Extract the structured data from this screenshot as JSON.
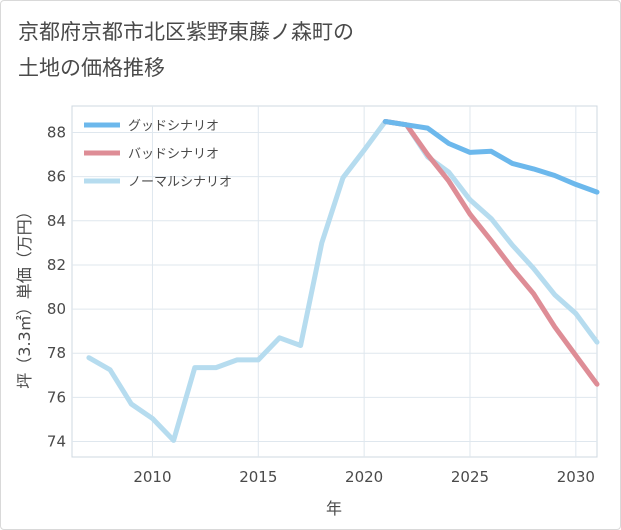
{
  "title": "京都府京都市北区紫野東藤ノ森町の\n土地の価格推移",
  "chart_data": {
    "type": "line",
    "xlabel": "年",
    "ylabel": "坪（3.3㎡）単価（万円）",
    "xlim": [
      2006.2,
      2031
    ],
    "ylim": [
      73.3,
      89.2
    ],
    "xticks": [
      2010,
      2015,
      2020,
      2025,
      2030
    ],
    "yticks": [
      74,
      76,
      78,
      80,
      82,
      84,
      86,
      88
    ],
    "grid": true,
    "legend_position": "top-left",
    "series": [
      {
        "name": "グッドシナリオ",
        "color": "#6cb8ec",
        "x": [
          2021,
          2022,
          2023,
          2024,
          2025,
          2026,
          2027,
          2028,
          2029,
          2030,
          2031
        ],
        "values": [
          88.5,
          88.35,
          88.2,
          87.5,
          87.1,
          87.15,
          86.6,
          86.35,
          86.05,
          85.65,
          85.3
        ]
      },
      {
        "name": "バッドシナリオ",
        "color": "#de8d96",
        "x": [
          2021,
          2022,
          2023,
          2024,
          2025,
          2026,
          2027,
          2028,
          2029,
          2030,
          2031
        ],
        "values": [
          88.5,
          88.35,
          87.0,
          85.8,
          84.3,
          83.1,
          81.85,
          80.7,
          79.2,
          77.9,
          76.6
        ]
      },
      {
        "name": "ノーマルシナリオ",
        "color": "#b6dcef",
        "x": [
          2007,
          2008,
          2009,
          2010,
          2011,
          2012,
          2013,
          2014,
          2015,
          2016,
          2017,
          2018,
          2019,
          2020,
          2021,
          2022,
          2023,
          2024,
          2025,
          2026,
          2027,
          2028,
          2029,
          2030,
          2031
        ],
        "values": [
          77.8,
          77.25,
          75.7,
          75.05,
          74.05,
          77.35,
          77.35,
          77.7,
          77.7,
          78.7,
          78.35,
          83.0,
          85.95,
          87.2,
          88.5,
          88.35,
          86.9,
          86.2,
          84.95,
          84.1,
          82.9,
          81.85,
          80.65,
          79.8,
          78.5
        ]
      }
    ]
  }
}
